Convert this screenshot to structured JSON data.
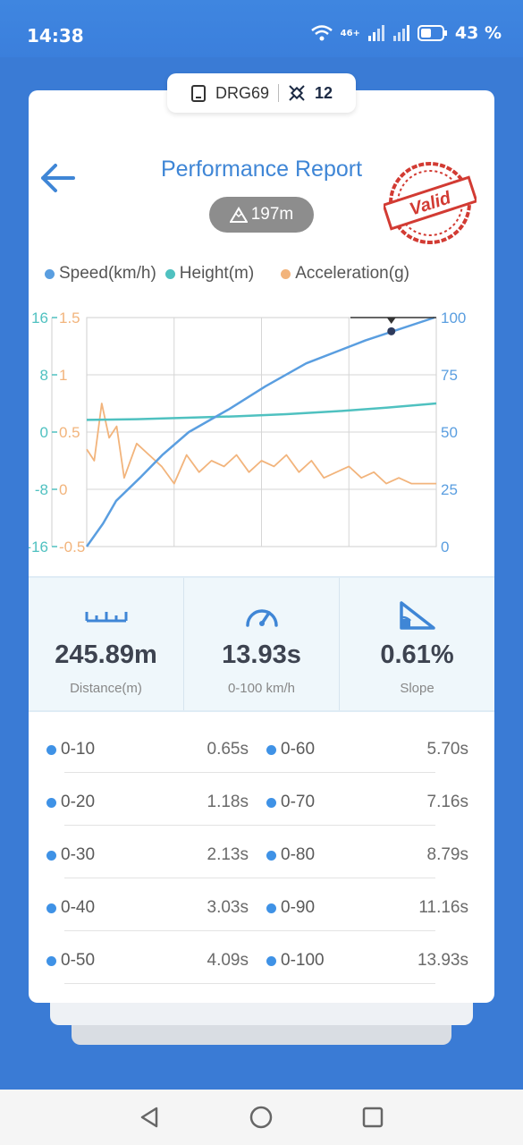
{
  "status": {
    "time": "14:38",
    "network": "46+",
    "battery": "43 %"
  },
  "device": {
    "name": "DRG69",
    "satellites": "12"
  },
  "header": {
    "title": "Performance Report",
    "altitude": "197m",
    "stamp_text": "Valid"
  },
  "legend": [
    {
      "label": "Speed(km/h)",
      "color": "#5a9ee0"
    },
    {
      "label": "Height(m)",
      "color": "#4fc1c0"
    },
    {
      "label": "Acceleration(g)",
      "color": "#f2b47c"
    }
  ],
  "chart_data": {
    "type": "line",
    "axes": {
      "height_ticks": [
        "16",
        "8",
        "0",
        "-8",
        "-16"
      ],
      "accel_ticks": [
        "1.5",
        "1",
        "0.5",
        "0",
        "-0.5"
      ],
      "speed_ticks": [
        "100",
        "75",
        "50",
        "25",
        "0"
      ],
      "speed_ylim": [
        0,
        100
      ],
      "height_ylim": [
        -16,
        16
      ],
      "accel_ylim": [
        -0.5,
        1.5
      ]
    },
    "series": [
      {
        "name": "Speed(km/h)",
        "color": "#5a9ee0",
        "x": [
          0,
          0.65,
          1.18,
          2.13,
          3.03,
          4.09,
          5.7,
          7.16,
          8.79,
          11.16,
          13.93
        ],
        "values": [
          0,
          10,
          20,
          30,
          40,
          50,
          60,
          70,
          80,
          90,
          100
        ]
      },
      {
        "name": "Height(m)",
        "color": "#4fc1c0",
        "x": [
          0,
          2,
          4,
          6,
          8,
          10,
          12,
          14
        ],
        "values": [
          1.7,
          1.8,
          2.0,
          2.2,
          2.5,
          2.9,
          3.4,
          4.0
        ]
      },
      {
        "name": "Acceleration(g)",
        "color": "#f2b47c",
        "x": [
          0,
          0.3,
          0.6,
          0.9,
          1.2,
          1.5,
          2.0,
          2.5,
          3.0,
          3.5,
          4.0,
          4.5,
          5.0,
          5.5,
          6.0,
          6.5,
          7.0,
          7.5,
          8.0,
          8.5,
          9.0,
          9.5,
          10.0,
          10.5,
          11.0,
          11.5,
          12.0,
          12.5,
          13.0,
          13.5,
          14.0
        ],
        "values": [
          0.35,
          0.25,
          0.75,
          0.45,
          0.55,
          0.1,
          0.4,
          0.3,
          0.2,
          0.05,
          0.3,
          0.15,
          0.25,
          0.2,
          0.3,
          0.15,
          0.25,
          0.2,
          0.3,
          0.15,
          0.25,
          0.1,
          0.15,
          0.2,
          0.1,
          0.15,
          0.05,
          0.1,
          0.05,
          0.05,
          0.05
        ]
      }
    ]
  },
  "stats": [
    {
      "value": "245.89m",
      "label": "Distance(m)",
      "icon": "ruler-icon"
    },
    {
      "value": "13.93s",
      "label": "0-100 km/h",
      "icon": "speedometer-icon"
    },
    {
      "value": "0.61%",
      "label": "Slope",
      "icon": "slope-icon"
    }
  ],
  "splits": [
    {
      "left_label": "0-10",
      "left_time": "0.65s",
      "right_label": "0-60",
      "right_time": "5.70s"
    },
    {
      "left_label": "0-20",
      "left_time": "1.18s",
      "right_label": "0-70",
      "right_time": "7.16s"
    },
    {
      "left_label": "0-30",
      "left_time": "2.13s",
      "right_label": "0-80",
      "right_time": "8.79s"
    },
    {
      "left_label": "0-40",
      "left_time": "3.03s",
      "right_label": "0-90",
      "right_time": "11.16s"
    },
    {
      "left_label": "0-50",
      "left_time": "4.09s",
      "right_label": "0-100",
      "right_time": "13.93s"
    }
  ]
}
